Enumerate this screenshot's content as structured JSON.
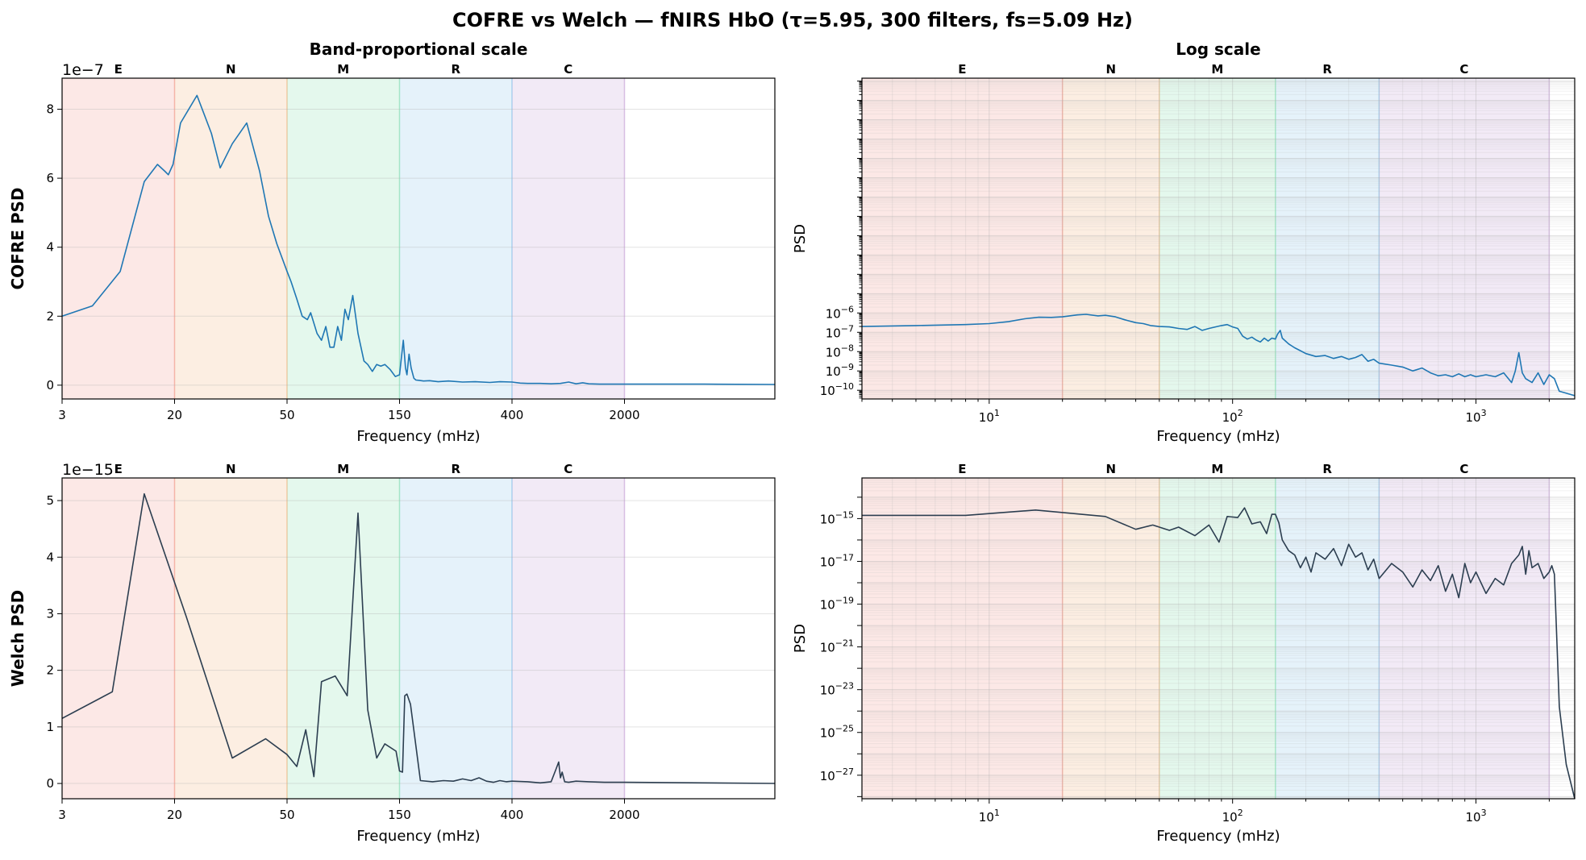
{
  "title": "COFRE vs Welch — fNIRS HbO (τ=5.95, 300 filters, fs=5.09 Hz)",
  "bands": [
    {
      "label": "E",
      "from": 3,
      "to": 20,
      "color": "#e74c3c"
    },
    {
      "label": "N",
      "from": 20,
      "to": 50,
      "color": "#e67e22"
    },
    {
      "label": "M",
      "from": 50,
      "to": 150,
      "color": "#2ecc71"
    },
    {
      "label": "R",
      "from": 150,
      "to": 400,
      "color": "#3498db"
    },
    {
      "label": "C",
      "from": 400,
      "to": 2000,
      "color": "#9b59b6"
    }
  ],
  "chart_data": [
    {
      "id": "cofre-band",
      "type": "line",
      "title": "Band-proportional scale",
      "xlabel": "Frequency (mHz)",
      "ylabel": "COFRE PSD",
      "y_offset_label": "1e−7",
      "x_scale": "band-proportional",
      "x_ticks": [
        "3",
        "20",
        "50",
        "150",
        "400",
        "2000"
      ],
      "y_ticks": [
        "0",
        "2",
        "4",
        "6",
        "8"
      ],
      "ylim": [
        -0.4,
        8.9
      ],
      "line_color": "#1f77b4",
      "series": [
        {
          "x": [
            3,
            5,
            8,
            12,
            15,
            17,
            18,
            19.5,
            21,
            24,
            27,
            29,
            32,
            36,
            40,
            43,
            46,
            50,
            52,
            55,
            58,
            61,
            63,
            67,
            70,
            73,
            76,
            79,
            82,
            85,
            88,
            91,
            95,
            100,
            106,
            110,
            115,
            120,
            125,
            130,
            137,
            144,
            150,
            155,
            158,
            160,
            163,
            166,
            170,
            173,
            178,
            185,
            195,
            210,
            230,
            260,
            290,
            330,
            360,
            400,
            450,
            500,
            600,
            700,
            800,
            900,
            1000,
            1100,
            1200,
            1400,
            2000,
            2300,
            2600
          ],
          "y": [
            2.0,
            2.3,
            3.3,
            5.9,
            6.4,
            6.2,
            6.1,
            6.4,
            7.6,
            8.4,
            7.3,
            6.3,
            7.0,
            7.6,
            6.2,
            4.9,
            4.1,
            3.3,
            3.0,
            2.5,
            2.0,
            1.9,
            2.1,
            1.5,
            1.3,
            1.7,
            1.1,
            1.1,
            1.7,
            1.3,
            2.2,
            1.9,
            2.6,
            1.5,
            0.7,
            0.6,
            0.4,
            0.6,
            0.55,
            0.6,
            0.45,
            0.25,
            0.3,
            1.3,
            0.5,
            0.3,
            0.9,
            0.5,
            0.2,
            0.15,
            0.14,
            0.12,
            0.13,
            0.1,
            0.12,
            0.09,
            0.1,
            0.08,
            0.1,
            0.09,
            0.06,
            0.05,
            0.05,
            0.04,
            0.05,
            0.09,
            0.04,
            0.07,
            0.04,
            0.03,
            0.03,
            0.03,
            0.02
          ]
        }
      ]
    },
    {
      "id": "cofre-log",
      "type": "line",
      "title": "Log scale",
      "xlabel": "Frequency (mHz)",
      "ylabel": "PSD",
      "x_scale": "log",
      "y_scale": "log",
      "xlim": [
        3,
        2545
      ],
      "ylim_exp": [
        -10.45,
        6.15
      ],
      "x_ticks": [
        {
          "base": "10",
          "exp": "1",
          "value": 10
        },
        {
          "base": "10",
          "exp": "2",
          "value": 100
        },
        {
          "base": "10",
          "exp": "3",
          "value": 1000
        }
      ],
      "y_ticks": [
        {
          "base": "10",
          "exp": "−6",
          "value": -6
        },
        {
          "base": "10",
          "exp": "−7",
          "value": -7
        },
        {
          "base": "10",
          "exp": "−8",
          "value": -8
        },
        {
          "base": "10",
          "exp": "−9",
          "value": -9
        },
        {
          "base": "10",
          "exp": "−10",
          "value": -10
        }
      ],
      "line_color": "#1f77b4",
      "series": [
        {
          "x": [
            3,
            5,
            8,
            10,
            12,
            14,
            16,
            18,
            20,
            23,
            25,
            28,
            30,
            33,
            36,
            40,
            43,
            46,
            50,
            55,
            60,
            65,
            70,
            75,
            80,
            85,
            90,
            95,
            100,
            105,
            110,
            115,
            120,
            125,
            130,
            135,
            140,
            145,
            150,
            153,
            157,
            160,
            165,
            170,
            180,
            190,
            200,
            220,
            240,
            260,
            280,
            300,
            320,
            340,
            360,
            380,
            400,
            450,
            500,
            550,
            600,
            650,
            700,
            750,
            800,
            850,
            900,
            950,
            1000,
            1100,
            1200,
            1300,
            1400,
            1450,
            1500,
            1550,
            1600,
            1700,
            1800,
            1900,
            2000,
            2100,
            2200,
            2545
          ],
          "y": [
            -6.7,
            -6.65,
            -6.6,
            -6.55,
            -6.45,
            -6.3,
            -6.22,
            -6.23,
            -6.2,
            -6.1,
            -6.07,
            -6.15,
            -6.12,
            -6.2,
            -6.35,
            -6.5,
            -6.55,
            -6.65,
            -6.7,
            -6.72,
            -6.8,
            -6.85,
            -6.7,
            -6.9,
            -6.8,
            -6.72,
            -6.65,
            -6.6,
            -6.72,
            -6.8,
            -7.2,
            -7.35,
            -7.25,
            -7.4,
            -7.5,
            -7.3,
            -7.45,
            -7.3,
            -7.35,
            -7.1,
            -6.9,
            -7.3,
            -7.45,
            -7.6,
            -7.8,
            -7.95,
            -8.1,
            -8.25,
            -8.2,
            -8.35,
            -8.25,
            -8.4,
            -8.3,
            -8.15,
            -8.5,
            -8.4,
            -8.6,
            -8.7,
            -8.8,
            -9.0,
            -8.85,
            -9.1,
            -9.25,
            -9.2,
            -9.3,
            -9.15,
            -9.3,
            -9.2,
            -9.3,
            -9.2,
            -9.3,
            -9.1,
            -9.6,
            -9.0,
            -8.05,
            -9.1,
            -9.4,
            -9.6,
            -9.1,
            -9.7,
            -9.2,
            -9.4,
            -10.05,
            -10.28
          ]
        }
      ]
    },
    {
      "id": "welch-band",
      "type": "line",
      "title": "",
      "xlabel": "Frequency (mHz)",
      "ylabel": "Welch PSD",
      "y_offset_label": "1e−15",
      "x_scale": "band-proportional",
      "x_ticks": [
        "3",
        "20",
        "50",
        "150",
        "400",
        "2000"
      ],
      "y_ticks": [
        "0",
        "1",
        "2",
        "3",
        "4",
        "5"
      ],
      "ylim": [
        -0.27,
        5.4
      ],
      "line_color": "#2c3e50",
      "series": [
        {
          "x": [
            3,
            7,
            12,
            22,
            32,
            42,
            50,
            55,
            60,
            65,
            70,
            80,
            90,
            100,
            110,
            120,
            130,
            145,
            150,
            154,
            157,
            160,
            165,
            180,
            200,
            220,
            240,
            260,
            280,
            300,
            320,
            340,
            360,
            380,
            400,
            500,
            600,
            700,
            750,
            780,
            800,
            820,
            850,
            900,
            1000,
            1200,
            1500,
            2000,
            2300,
            2600
          ],
          "y": [
            1.15,
            1.62,
            5.12,
            2.95,
            0.45,
            0.79,
            0.51,
            0.3,
            0.95,
            0.12,
            1.8,
            1.9,
            1.55,
            4.78,
            1.3,
            0.45,
            0.7,
            0.57,
            0.22,
            0.2,
            1.55,
            1.58,
            1.4,
            0.05,
            0.03,
            0.05,
            0.04,
            0.08,
            0.05,
            0.1,
            0.04,
            0.02,
            0.05,
            0.03,
            0.04,
            0.03,
            0.01,
            0.03,
            0.25,
            0.38,
            0.1,
            0.2,
            0.03,
            0.02,
            0.04,
            0.03,
            0.02,
            0.02,
            0.01,
            0.0
          ]
        }
      ]
    },
    {
      "id": "welch-log",
      "type": "line",
      "title": "",
      "xlabel": "Frequency (mHz)",
      "ylabel": "PSD",
      "x_scale": "log",
      "y_scale": "log",
      "xlim": [
        3,
        2545
      ],
      "ylim_exp": [
        -28.1,
        -13.1
      ],
      "x_ticks": [
        {
          "base": "10",
          "exp": "1",
          "value": 10
        },
        {
          "base": "10",
          "exp": "2",
          "value": 100
        },
        {
          "base": "10",
          "exp": "3",
          "value": 1000
        }
      ],
      "y_ticks": [
        {
          "base": "10",
          "exp": "−15",
          "value": -15
        },
        {
          "base": "10",
          "exp": "−17",
          "value": -17
        },
        {
          "base": "10",
          "exp": "−19",
          "value": -19
        },
        {
          "base": "10",
          "exp": "−21",
          "value": -21
        },
        {
          "base": "10",
          "exp": "−23",
          "value": -23
        },
        {
          "base": "10",
          "exp": "−25",
          "value": -25
        },
        {
          "base": "10",
          "exp": "−27",
          "value": -27
        }
      ],
      "line_color": "#2c3e50",
      "series": [
        {
          "x": [
            3,
            8,
            15.5,
            30,
            40,
            47,
            55,
            60,
            70,
            80,
            88,
            95,
            105,
            112,
            120,
            130,
            138,
            145,
            150,
            155,
            160,
            170,
            180,
            190,
            200,
            210,
            220,
            240,
            260,
            280,
            300,
            320,
            340,
            360,
            380,
            400,
            450,
            500,
            550,
            600,
            650,
            700,
            750,
            800,
            850,
            900,
            950,
            1000,
            1100,
            1200,
            1300,
            1400,
            1500,
            1550,
            1600,
            1650,
            1700,
            1800,
            1900,
            2000,
            2050,
            2100,
            2200,
            2350,
            2545
          ],
          "y": [
            -14.85,
            -14.85,
            -14.6,
            -14.9,
            -15.5,
            -15.3,
            -15.55,
            -15.4,
            -15.8,
            -15.3,
            -16.1,
            -14.9,
            -14.95,
            -14.5,
            -15.25,
            -15.15,
            -15.7,
            -14.8,
            -14.8,
            -15.2,
            -16.0,
            -16.5,
            -16.7,
            -17.3,
            -16.8,
            -17.5,
            -16.6,
            -16.9,
            -16.4,
            -17.2,
            -16.2,
            -16.8,
            -16.6,
            -17.4,
            -16.9,
            -17.8,
            -17.1,
            -17.5,
            -18.2,
            -17.4,
            -17.9,
            -17.2,
            -18.4,
            -17.6,
            -18.7,
            -17.1,
            -18.0,
            -17.5,
            -18.5,
            -17.8,
            -18.1,
            -17.1,
            -16.7,
            -16.3,
            -17.6,
            -16.5,
            -17.3,
            -17.1,
            -17.8,
            -17.5,
            -17.2,
            -17.6,
            -23.8,
            -26.5,
            -28.1
          ]
        }
      ]
    }
  ]
}
